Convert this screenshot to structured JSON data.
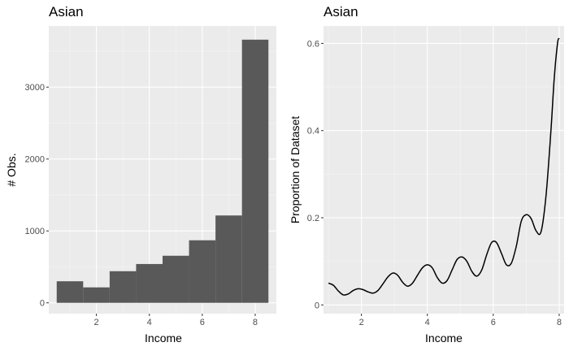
{
  "chart_data": [
    {
      "type": "bar",
      "title": "Asian",
      "xlabel": "Income",
      "ylabel": "# Obs.",
      "bins": [
        {
          "x0": 0.5,
          "x1": 1.5,
          "count": 300
        },
        {
          "x0": 1.5,
          "x1": 2.5,
          "count": 215
        },
        {
          "x0": 2.5,
          "x1": 3.5,
          "count": 440
        },
        {
          "x0": 3.5,
          "x1": 4.5,
          "count": 540
        },
        {
          "x0": 4.5,
          "x1": 5.5,
          "count": 655
        },
        {
          "x0": 5.5,
          "x1": 6.5,
          "count": 870
        },
        {
          "x0": 6.5,
          "x1": 7.5,
          "count": 1215
        },
        {
          "x0": 7.5,
          "x1": 8.5,
          "count": 3660
        }
      ],
      "xlim": [
        0.2,
        8.8
      ],
      "ylim": [
        -150,
        3850
      ],
      "xticks": [
        2,
        4,
        6,
        8
      ],
      "yticks": [
        0,
        1000,
        2000,
        3000
      ],
      "grid": true,
      "bar_color": "#595959"
    },
    {
      "type": "line",
      "title": "Asian",
      "xlabel": "Income",
      "ylabel": "Proportion of Dataset",
      "points": [
        [
          1.0,
          0.05
        ],
        [
          1.15,
          0.045
        ],
        [
          1.3,
          0.032
        ],
        [
          1.45,
          0.023
        ],
        [
          1.6,
          0.025
        ],
        [
          1.75,
          0.033
        ],
        [
          1.9,
          0.037
        ],
        [
          2.05,
          0.035
        ],
        [
          2.2,
          0.03
        ],
        [
          2.35,
          0.027
        ],
        [
          2.5,
          0.033
        ],
        [
          2.65,
          0.048
        ],
        [
          2.8,
          0.064
        ],
        [
          2.95,
          0.073
        ],
        [
          3.1,
          0.068
        ],
        [
          3.25,
          0.052
        ],
        [
          3.4,
          0.043
        ],
        [
          3.55,
          0.05
        ],
        [
          3.7,
          0.068
        ],
        [
          3.85,
          0.085
        ],
        [
          4.0,
          0.092
        ],
        [
          4.15,
          0.085
        ],
        [
          4.3,
          0.063
        ],
        [
          4.45,
          0.05
        ],
        [
          4.6,
          0.056
        ],
        [
          4.75,
          0.08
        ],
        [
          4.9,
          0.104
        ],
        [
          5.05,
          0.11
        ],
        [
          5.2,
          0.1
        ],
        [
          5.35,
          0.077
        ],
        [
          5.5,
          0.066
        ],
        [
          5.65,
          0.08
        ],
        [
          5.8,
          0.115
        ],
        [
          5.95,
          0.143
        ],
        [
          6.1,
          0.143
        ],
        [
          6.25,
          0.118
        ],
        [
          6.4,
          0.092
        ],
        [
          6.55,
          0.096
        ],
        [
          6.7,
          0.135
        ],
        [
          6.85,
          0.192
        ],
        [
          7.0,
          0.207
        ],
        [
          7.15,
          0.198
        ],
        [
          7.3,
          0.17
        ],
        [
          7.45,
          0.168
        ],
        [
          7.6,
          0.25
        ],
        [
          7.75,
          0.4
        ],
        [
          7.85,
          0.52
        ],
        [
          7.95,
          0.6
        ],
        [
          8.0,
          0.612
        ]
      ],
      "xlim": [
        0.85,
        8.15
      ],
      "ylim": [
        -0.02,
        0.64
      ],
      "xticks": [
        2,
        4,
        6,
        8
      ],
      "yticks": [
        0.0,
        0.2,
        0.4,
        0.6
      ],
      "grid": true,
      "line_color": "#000000"
    }
  ]
}
